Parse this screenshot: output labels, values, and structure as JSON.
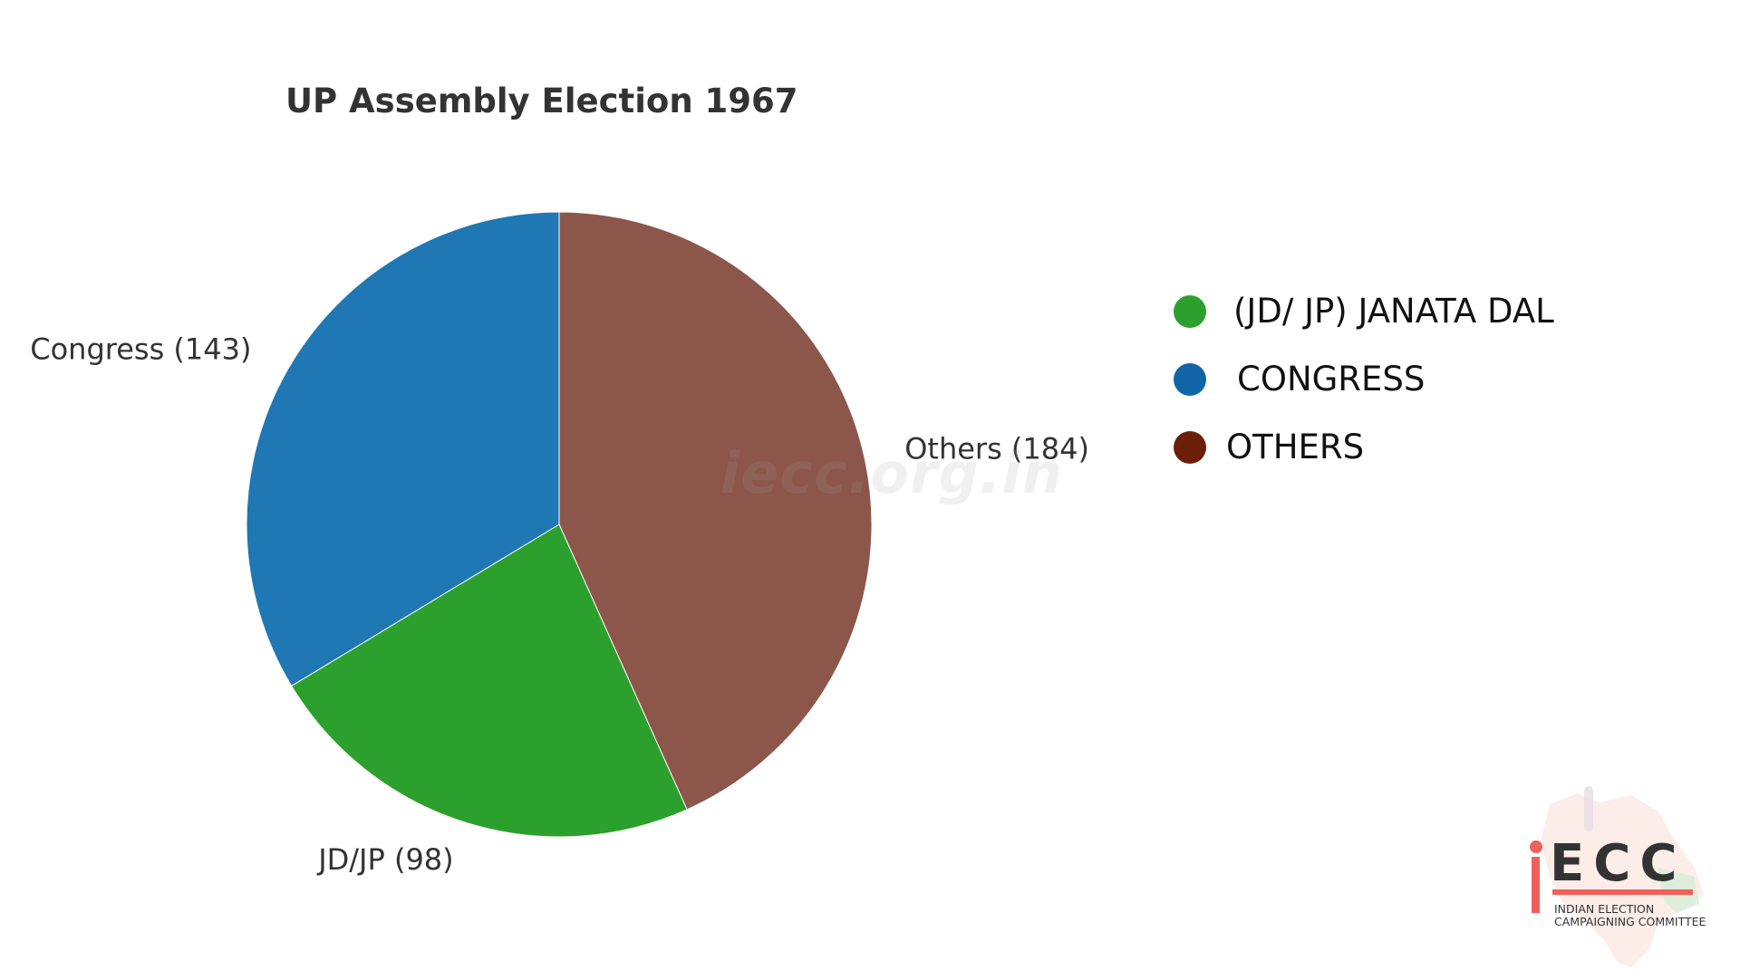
{
  "chart_data": {
    "type": "pie",
    "title": "UP Assembly Election 1967",
    "slices": [
      {
        "label": "Others (184)",
        "value": 184,
        "color": "#8c564b"
      },
      {
        "label": "JD/JP (98)",
        "value": 98,
        "color": "#2ca02c"
      },
      {
        "label": "Congress (143)",
        "value": 143,
        "color": "#1f77b4"
      }
    ],
    "start": "12 o'clock",
    "direction": "clockwise"
  },
  "legend": {
    "placement": "right",
    "items": [
      {
        "label": "(JD/ JP) JANATA DAL",
        "color": "#2ca02c"
      },
      {
        "label": "CONGRESS",
        "color": "#1065a8"
      },
      {
        "label": "OTHERS",
        "color": "#6b1f08"
      }
    ]
  },
  "watermark": "iecc.org.in",
  "logo": {
    "mark": "iECC",
    "line1": "INDIAN ELECTION",
    "line2": "CAMPAIGNING COMMITTEE",
    "colors": {
      "accent": "#f0605a",
      "text": "#333333"
    }
  }
}
